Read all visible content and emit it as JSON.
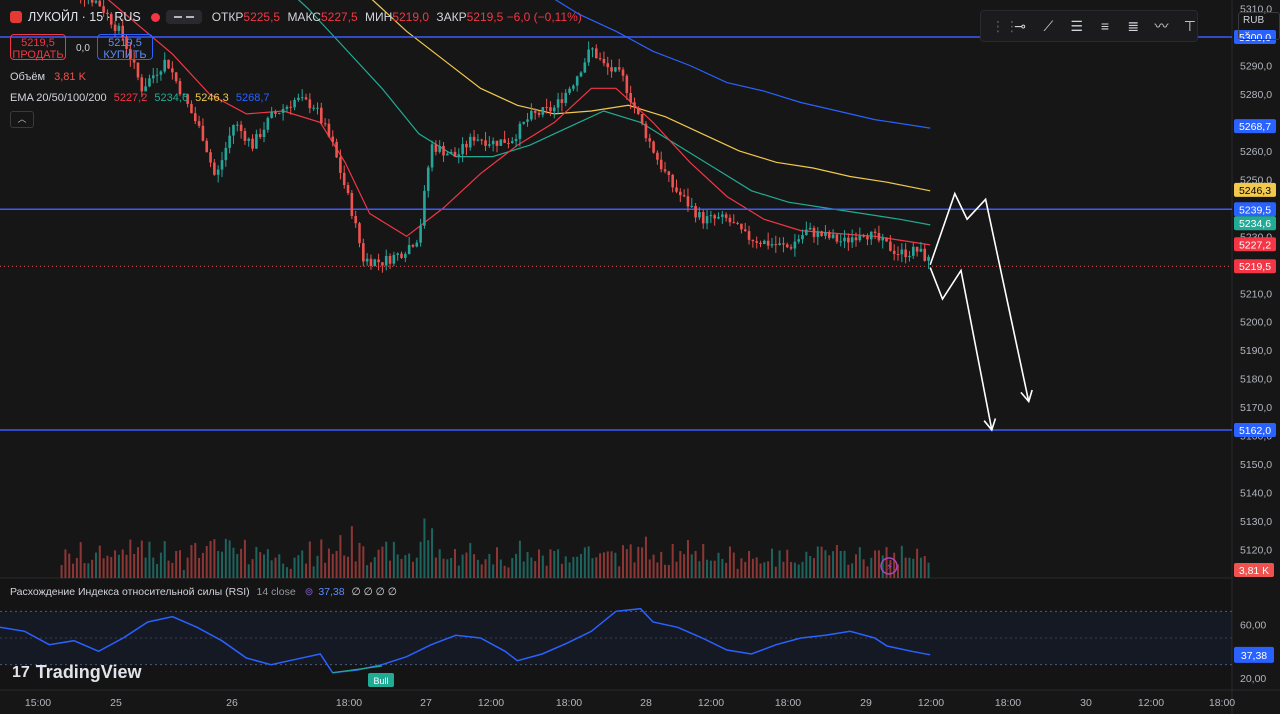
{
  "header": {
    "ticker": "ЛУКОЙЛ · 15 · RUS",
    "ohlc": [
      {
        "label": "ОТКР",
        "value": "5225,5"
      },
      {
        "label": "МАКС",
        "value": "5227,5"
      },
      {
        "label": "МИН",
        "value": "5219,0"
      },
      {
        "label": "ЗАКР",
        "value": "5219,5 −6,0 (−0,11%)"
      }
    ],
    "sell_price": "5219,5",
    "sell_label": "ПРОДАТЬ",
    "spread": "0,0",
    "buy_price": "5219,5",
    "buy_label": "КУПИТЬ"
  },
  "indicators": {
    "volume_label": "Объём",
    "volume_value": "3,81 K",
    "ema_label": "EMA 20/50/100/200",
    "ema_values": [
      "5227,2",
      "5234,6",
      "5246,3",
      "5268,7"
    ],
    "rsi_label": "Расхождение Индекса относительной силы (RSI)",
    "rsi_params": "14 close",
    "rsi_value": "37,38",
    "rsi_extra": "∅ ∅ ∅ ∅",
    "bull_label": "Bull"
  },
  "currency": "RUB",
  "brand": "TradingView",
  "colors": {
    "up": "#26a69a",
    "down": "#ef5350",
    "ema20": "#f23645",
    "ema50": "#22ab94",
    "ema100": "#f2c94c",
    "ema200": "#2962ff",
    "level": "#3d5afe",
    "rsi": "#2962ff"
  },
  "chart_data": {
    "type": "candlestick",
    "price_axis": {
      "ticks": [
        "5310,0",
        "5300,0",
        "5290,0",
        "5280,0",
        "5270,0",
        "5260,0",
        "5250,0",
        "5240,0",
        "5230,0",
        "5220,0",
        "5210,0",
        "5200,0",
        "5190,0",
        "5180,0",
        "5170,0",
        "5160,0",
        "5150,0",
        "5140,0",
        "5130,0",
        "5120,0"
      ],
      "min": 5110,
      "max": 5313
    },
    "time_axis": {
      "ticks": [
        "15:00",
        "25",
        "26",
        "18:00",
        "27",
        "12:00",
        "18:00",
        "28",
        "12:00",
        "18:00",
        "29",
        "12:00",
        "18:00",
        "30",
        "12:00",
        "18:00"
      ]
    },
    "horizontal_levels": [
      5300.0,
      5239.5,
      5162.0
    ],
    "price_labels": [
      {
        "text": "5300,0",
        "value": 5300.0,
        "color": "#2962ff"
      },
      {
        "text": "5268,7",
        "value": 5268.7,
        "color": "#2962ff"
      },
      {
        "text": "5246,3",
        "value": 5246.3,
        "color": "#f2c94c"
      },
      {
        "text": "5239,5",
        "value": 5239.5,
        "color": "#2962ff"
      },
      {
        "text": "5234,6",
        "value": 5234.6,
        "color": "#22ab94"
      },
      {
        "text": "5227,2",
        "value": 5227.2,
        "color": "#f23645"
      },
      {
        "text": "5219,5",
        "value": 5219.5,
        "color": "#f23645"
      },
      {
        "text": "5162,0",
        "value": 5162.0,
        "color": "#2962ff"
      }
    ],
    "price_path": [
      [
        0.05,
        5320
      ],
      [
        0.08,
        5312
      ],
      [
        0.1,
        5300
      ],
      [
        0.115,
        5282
      ],
      [
        0.135,
        5292
      ],
      [
        0.15,
        5278
      ],
      [
        0.165,
        5265
      ],
      [
        0.175,
        5250
      ],
      [
        0.19,
        5270
      ],
      [
        0.205,
        5262
      ],
      [
        0.22,
        5272
      ],
      [
        0.24,
        5278
      ],
      [
        0.255,
        5276
      ],
      [
        0.27,
        5262
      ],
      [
        0.285,
        5240
      ],
      [
        0.295,
        5222
      ],
      [
        0.31,
        5221
      ],
      [
        0.325,
        5224
      ],
      [
        0.34,
        5230
      ],
      [
        0.35,
        5262
      ],
      [
        0.37,
        5258
      ],
      [
        0.385,
        5265
      ],
      [
        0.4,
        5263
      ],
      [
        0.415,
        5264
      ],
      [
        0.43,
        5272
      ],
      [
        0.45,
        5275
      ],
      [
        0.465,
        5284
      ],
      [
        0.48,
        5296
      ],
      [
        0.49,
        5290
      ],
      [
        0.505,
        5286
      ],
      [
        0.52,
        5270
      ],
      [
        0.535,
        5256
      ],
      [
        0.545,
        5248
      ],
      [
        0.555,
        5243
      ],
      [
        0.57,
        5236
      ],
      [
        0.59,
        5236
      ],
      [
        0.605,
        5230
      ],
      [
        0.62,
        5228
      ],
      [
        0.64,
        5226
      ],
      [
        0.655,
        5232
      ],
      [
        0.67,
        5230
      ],
      [
        0.685,
        5228
      ],
      [
        0.7,
        5232
      ],
      [
        0.715,
        5228
      ],
      [
        0.73,
        5224
      ],
      [
        0.745,
        5225
      ],
      [
        0.755,
        5221
      ]
    ],
    "ema20": [
      [
        0.05,
        5322
      ],
      [
        0.08,
        5316
      ],
      [
        0.11,
        5305
      ],
      [
        0.14,
        5294
      ],
      [
        0.17,
        5280
      ],
      [
        0.2,
        5273
      ],
      [
        0.23,
        5274
      ],
      [
        0.26,
        5270
      ],
      [
        0.28,
        5256
      ],
      [
        0.3,
        5238
      ],
      [
        0.33,
        5230
      ],
      [
        0.36,
        5240
      ],
      [
        0.39,
        5252
      ],
      [
        0.42,
        5262
      ],
      [
        0.45,
        5270
      ],
      [
        0.48,
        5282
      ],
      [
        0.5,
        5282
      ],
      [
        0.53,
        5270
      ],
      [
        0.56,
        5256
      ],
      [
        0.59,
        5244
      ],
      [
        0.62,
        5236
      ],
      [
        0.65,
        5232
      ],
      [
        0.68,
        5231
      ],
      [
        0.71,
        5230
      ],
      [
        0.74,
        5228
      ],
      [
        0.755,
        5227
      ]
    ],
    "ema50": [
      [
        0.22,
        5322
      ],
      [
        0.25,
        5310
      ],
      [
        0.28,
        5296
      ],
      [
        0.31,
        5282
      ],
      [
        0.34,
        5266
      ],
      [
        0.37,
        5258
      ],
      [
        0.4,
        5258
      ],
      [
        0.43,
        5262
      ],
      [
        0.46,
        5268
      ],
      [
        0.49,
        5274
      ],
      [
        0.52,
        5270
      ],
      [
        0.55,
        5262
      ],
      [
        0.58,
        5254
      ],
      [
        0.61,
        5246
      ],
      [
        0.64,
        5242
      ],
      [
        0.67,
        5240
      ],
      [
        0.7,
        5238
      ],
      [
        0.73,
        5236
      ],
      [
        0.755,
        5234
      ]
    ],
    "ema100": [
      [
        0.27,
        5322
      ],
      [
        0.3,
        5314
      ],
      [
        0.33,
        5302
      ],
      [
        0.36,
        5292
      ],
      [
        0.39,
        5282
      ],
      [
        0.42,
        5276
      ],
      [
        0.45,
        5273
      ],
      [
        0.48,
        5274
      ],
      [
        0.51,
        5276
      ],
      [
        0.54,
        5272
      ],
      [
        0.57,
        5266
      ],
      [
        0.6,
        5260
      ],
      [
        0.63,
        5256
      ],
      [
        0.66,
        5254
      ],
      [
        0.69,
        5251
      ],
      [
        0.72,
        5249
      ],
      [
        0.755,
        5246
      ]
    ],
    "ema200": [
      [
        0.41,
        5322
      ],
      [
        0.44,
        5316
      ],
      [
        0.47,
        5308
      ],
      [
        0.5,
        5302
      ],
      [
        0.53,
        5295
      ],
      [
        0.56,
        5290
      ],
      [
        0.59,
        5284
      ],
      [
        0.62,
        5281
      ],
      [
        0.65,
        5277
      ],
      [
        0.68,
        5274
      ],
      [
        0.71,
        5271
      ],
      [
        0.755,
        5268
      ]
    ],
    "projection_arrow_1": [
      [
        0.755,
        5220
      ],
      [
        0.775,
        5245
      ],
      [
        0.785,
        5236
      ],
      [
        0.8,
        5243
      ],
      [
        0.835,
        5172
      ]
    ],
    "projection_arrow_2": [
      [
        0.755,
        5219
      ],
      [
        0.765,
        5208
      ],
      [
        0.78,
        5218
      ],
      [
        0.805,
        5162
      ]
    ],
    "volume_scale": "3,81 K",
    "rsi": {
      "scale": [
        "60,00",
        "37,38",
        "20,00"
      ],
      "upper": 70,
      "lower": 30,
      "last": 37.38
    }
  }
}
